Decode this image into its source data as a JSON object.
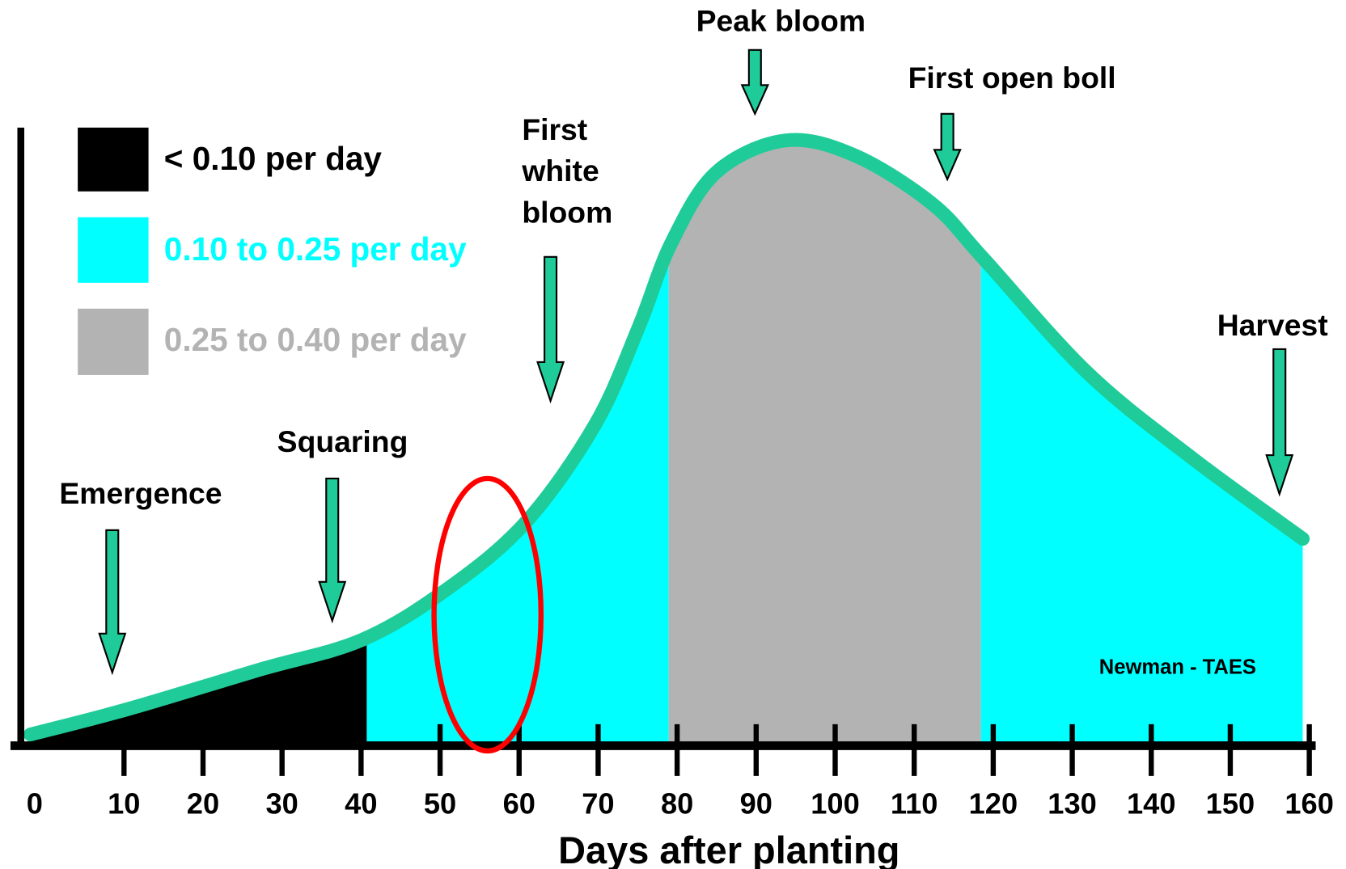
{
  "legend": [
    {
      "label": "< 0.10 per day",
      "color": "#000000"
    },
    {
      "label": "0.10 to 0.25 per day",
      "color": "#00ffff"
    },
    {
      "label": "0.25 to 0.40 per day",
      "color": "#b3b3b3"
    }
  ],
  "annotations": [
    {
      "lines": [
        "Emergence"
      ]
    },
    {
      "lines": [
        "Squaring"
      ]
    },
    {
      "lines": [
        "First",
        "white",
        "bloom"
      ]
    },
    {
      "lines": [
        "Peak bloom"
      ]
    },
    {
      "lines": [
        "First open boll"
      ]
    },
    {
      "lines": [
        "Harvest"
      ]
    }
  ],
  "credit": "Newman - TAES",
  "x_axis": {
    "title": "Days after planting",
    "ticks": [
      0,
      10,
      20,
      30,
      40,
      50,
      60,
      70,
      80,
      90,
      100,
      110,
      120,
      130,
      140,
      150,
      160
    ]
  }
}
